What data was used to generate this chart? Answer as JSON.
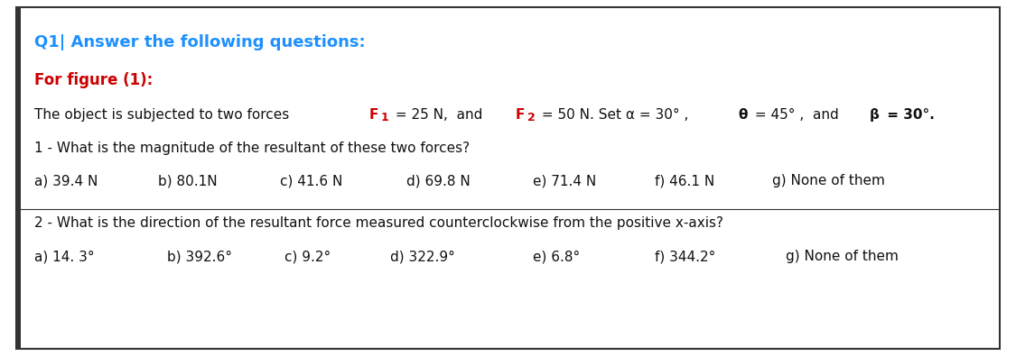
{
  "title": "Q1| Answer the following questions:",
  "subtitle": "For figure (1):",
  "q1": "1 - What is the magnitude of the resultant of these two forces?",
  "q1_options": [
    "a) 39.4 N",
    "b) 80.1N",
    "c) 41.6 N",
    "d) 69.8 N",
    "e) 71.4 N",
    "f) 46.1 N",
    "g) None of them"
  ],
  "q2": "2 - What is the direction of the resultant force measured counterclockwise from the positive x-axis?",
  "q2_options": [
    "a) 14. 3°",
    "b) 392.6°",
    "c) 9.2°",
    "d) 322.9°",
    "e) 6.8°",
    "f) 344.2°",
    "g) None of them"
  ],
  "desc_prefix": "The object is subjected to two forces ",
  "desc_F1": "F",
  "desc_F1sub": "1",
  "desc_mid1": " = 25 N,  and ",
  "desc_F2": "F",
  "desc_F2sub": "2",
  "desc_mid2": " = 50 N. Set α = 30° , ",
  "desc_theta": "θ",
  "desc_mid3": " = 45° ,  and ",
  "desc_beta": "β",
  "desc_end": " = 30°.",
  "title_color": "#1E90FF",
  "subtitle_color": "#CC0000",
  "text_color": "#111111",
  "red_color": "#CC0000",
  "bg_color": "#FFFFFF",
  "border_color": "#333333",
  "title_fontsize": 13,
  "subtitle_fontsize": 12,
  "body_fontsize": 11,
  "options_fontsize": 11
}
